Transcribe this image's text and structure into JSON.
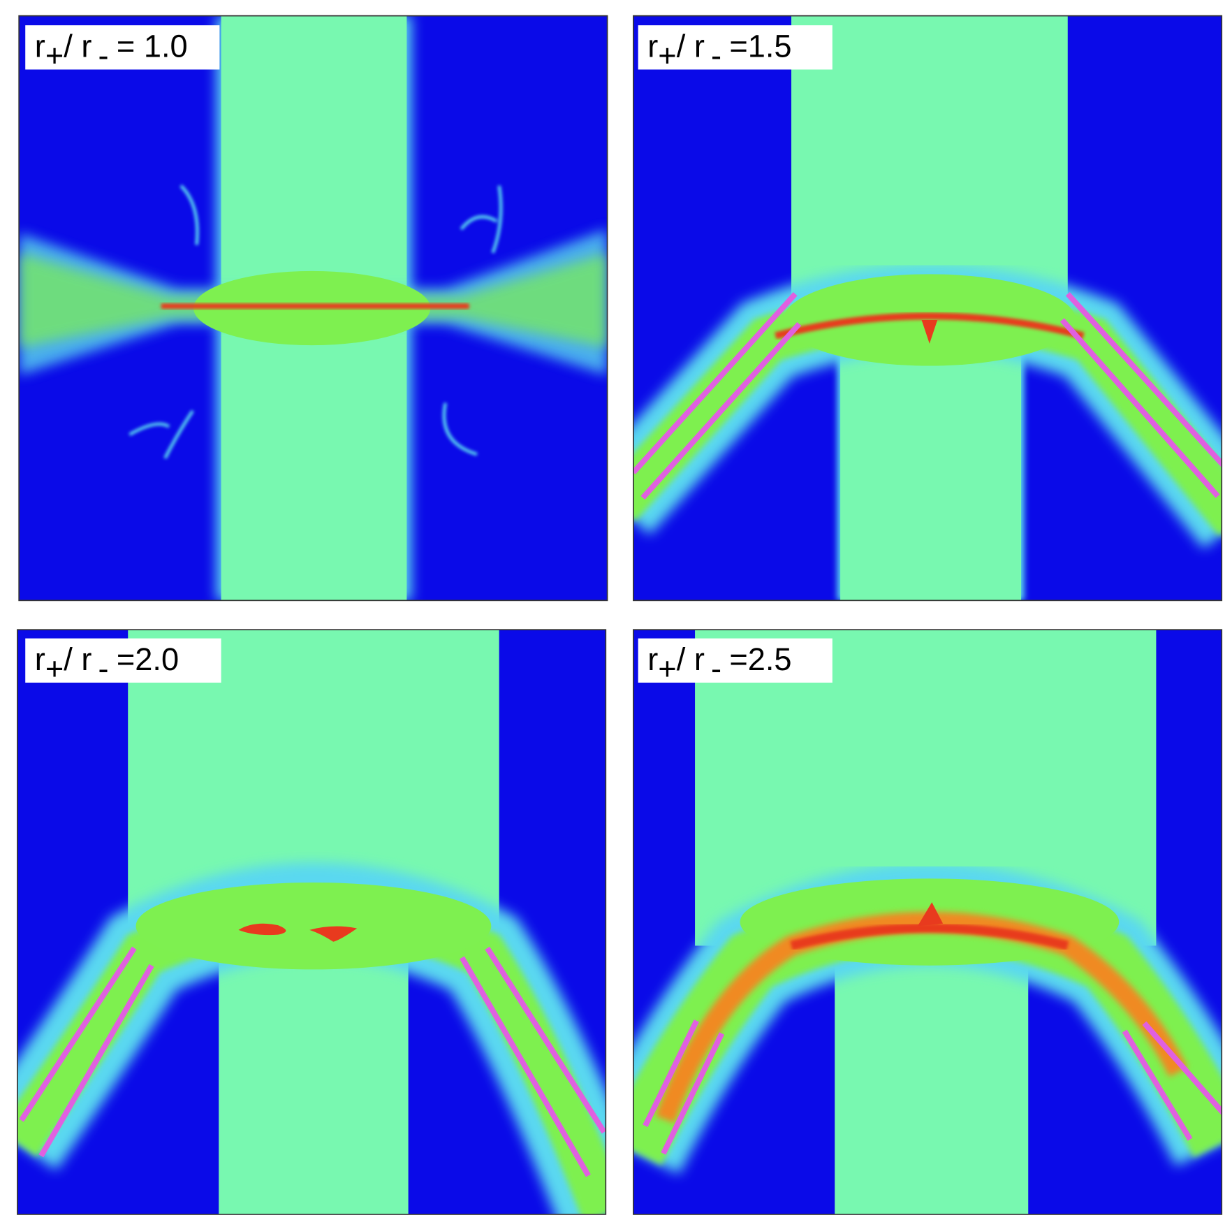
{
  "panels": [
    {
      "label": [
        "r",
        "+",
        "/ r",
        "-",
        "= 1.0"
      ]
    },
    {
      "label": [
        "r",
        "+",
        "/ r",
        "-",
        "=1.5"
      ]
    },
    {
      "label": [
        "r",
        "+",
        "/ r",
        "-",
        "=2.0"
      ]
    },
    {
      "label": [
        "r",
        "+",
        "/ r",
        "-",
        "=2.5"
      ]
    }
  ]
}
